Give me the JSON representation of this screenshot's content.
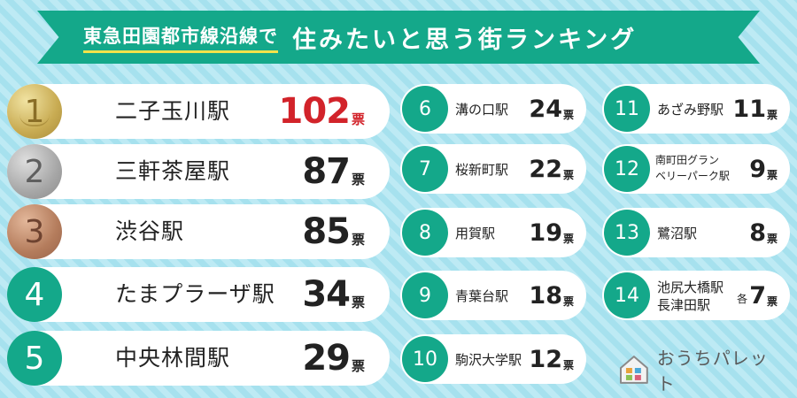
{
  "header": {
    "label": "東急田園都市線沿線で",
    "title": "住みたいと思う街ランキング"
  },
  "unit": "票",
  "ranking_top": [
    {
      "rank": "1",
      "name": "二子玉川駅",
      "votes": "102"
    },
    {
      "rank": "2",
      "name": "三軒茶屋駅",
      "votes": "87"
    },
    {
      "rank": "3",
      "name": "渋谷駅",
      "votes": "85"
    },
    {
      "rank": "4",
      "name": "たまプラーザ駅",
      "votes": "34"
    },
    {
      "rank": "5",
      "name": "中央林間駅",
      "votes": "29"
    }
  ],
  "ranking_mid": [
    {
      "rank": "6",
      "name": "溝の口駅",
      "votes": "24"
    },
    {
      "rank": "7",
      "name": "桜新町駅",
      "votes": "22"
    },
    {
      "rank": "8",
      "name": "用賀駅",
      "votes": "19"
    },
    {
      "rank": "9",
      "name": "青葉台駅",
      "votes": "18"
    },
    {
      "rank": "10",
      "name": "駒沢大学駅",
      "votes": "12"
    }
  ],
  "ranking_right": [
    {
      "rank": "11",
      "name": "あざみ野駅",
      "votes": "11"
    },
    {
      "rank": "12",
      "name_line1": "南町田グラン",
      "name_line2": "ベリーパーク駅",
      "votes": "9"
    },
    {
      "rank": "13",
      "name": "鷺沼駅",
      "votes": "8"
    },
    {
      "rank": "14",
      "name_line1": "池尻大橋駅",
      "name_line2": "長津田駅",
      "prefix": "各",
      "votes": "7"
    }
  ],
  "brand": {
    "name": "おうちパレット",
    "icon": "house-palette-icon"
  },
  "colors": {
    "accent": "#14a88a",
    "highlight": "#d2232a",
    "underline": "#f2e24a"
  }
}
